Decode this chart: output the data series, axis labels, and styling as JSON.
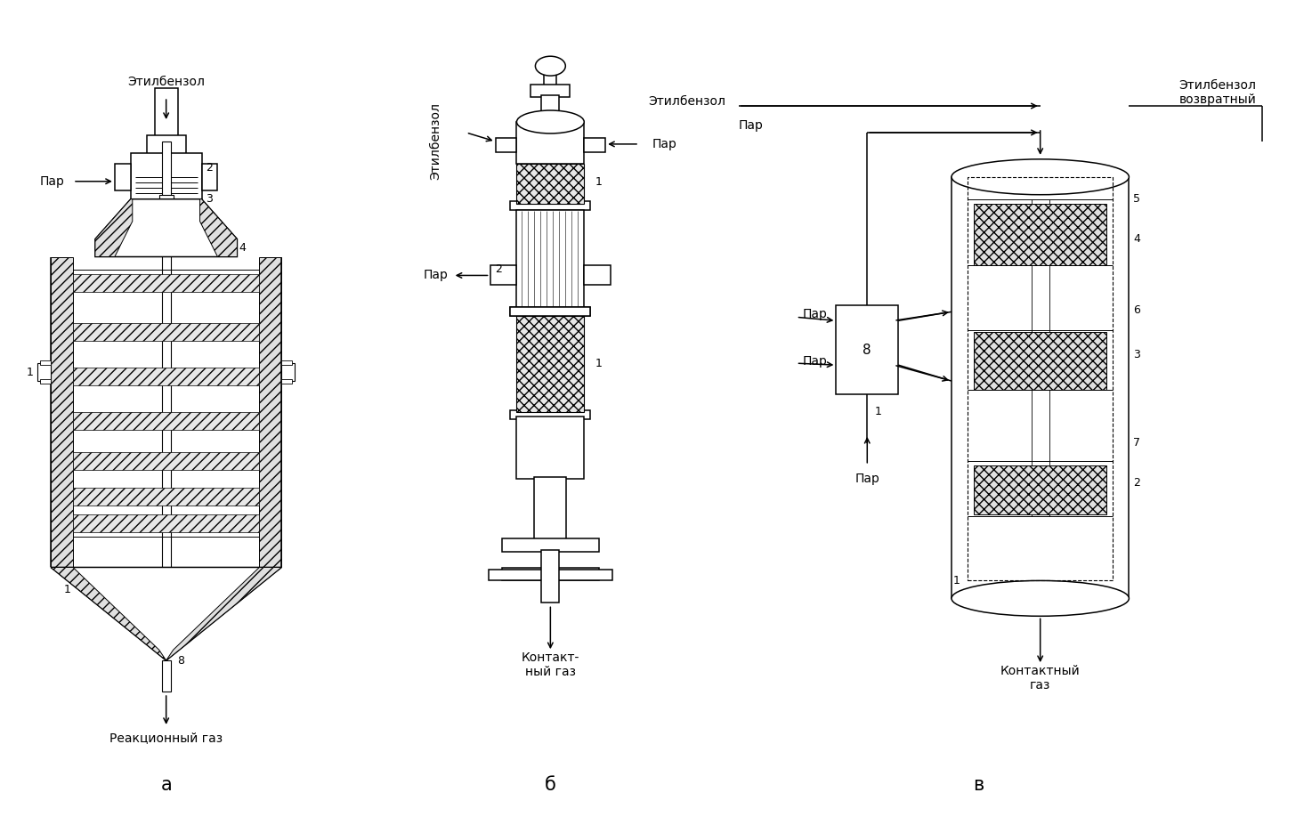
{
  "bg_color": "#ffffff",
  "lc": "#000000",
  "label_a": "а",
  "label_b": "б",
  "label_v": "в",
  "a_ethilbenzol": "Этилбензол",
  "a_par": "Пар",
  "a_reakgas": "Реакционный газ",
  "b_ethilbenzol": "Этилбензол",
  "b_par_top": "Пар",
  "b_par_mid": "Пар",
  "b_kontakt": "Контакт-\nный газ",
  "v_ethilbenzol": "Этилбензол",
  "v_par": "Пар",
  "v_eb_ret": "Этилбензол\nвозвратный",
  "v_par2": "Пар",
  "v_par3": "Пар",
  "v_par4": "Пар",
  "v_kontakt": "Контактный\nгаз"
}
